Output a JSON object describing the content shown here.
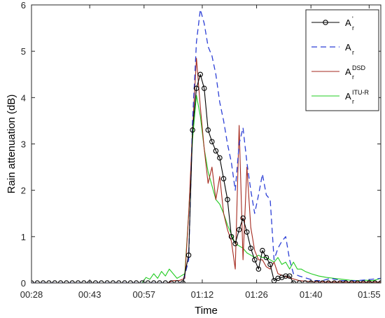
{
  "chart_data": {
    "type": "line",
    "xlabel": "Time",
    "ylabel": "Rain attenuation (dB)",
    "x_tick_labels": [
      "00:28",
      "00:43",
      "00:57",
      "01:12",
      "01:26",
      "01:40",
      "01:55"
    ],
    "x_tick_minutes": [
      28,
      43,
      57,
      72,
      86,
      100,
      115
    ],
    "xlim_minutes": [
      28,
      118
    ],
    "ylim": [
      0,
      6
    ],
    "y_ticks": [
      0,
      1,
      2,
      3,
      4,
      5,
      6
    ],
    "grid": false,
    "legend_position": "top-right",
    "series": [
      {
        "name": "A_r'",
        "legend_main": "A",
        "legend_sub": "r",
        "legend_sup": "'",
        "color": "#000000",
        "style": "solid",
        "marker": "circle",
        "points": [
          [
            28,
            0
          ],
          [
            29.5,
            0
          ],
          [
            31,
            0
          ],
          [
            32.5,
            0
          ],
          [
            34,
            0
          ],
          [
            35.5,
            0
          ],
          [
            37,
            0
          ],
          [
            38.5,
            0
          ],
          [
            40,
            0
          ],
          [
            41.5,
            0
          ],
          [
            43,
            0
          ],
          [
            44.5,
            0
          ],
          [
            46,
            0
          ],
          [
            47.5,
            0
          ],
          [
            49,
            0
          ],
          [
            50.5,
            0
          ],
          [
            52,
            0
          ],
          [
            53.5,
            0
          ],
          [
            55,
            0
          ],
          [
            56.5,
            0
          ],
          [
            58,
            0
          ],
          [
            59.5,
            0
          ],
          [
            61,
            0
          ],
          [
            62.5,
            0
          ],
          [
            64,
            0
          ],
          [
            65.5,
            0
          ],
          [
            67,
            0
          ],
          [
            68.5,
            0.6
          ],
          [
            69.5,
            3.3
          ],
          [
            70.5,
            4.2
          ],
          [
            71.5,
            4.5
          ],
          [
            72.5,
            4.2
          ],
          [
            73.5,
            3.3
          ],
          [
            74.5,
            3.05
          ],
          [
            75.5,
            2.85
          ],
          [
            76.5,
            2.7
          ],
          [
            77.5,
            2.25
          ],
          [
            78.5,
            1.8
          ],
          [
            79.5,
            1.0
          ],
          [
            80.5,
            0.85
          ],
          [
            81.5,
            1.15
          ],
          [
            82.5,
            1.4
          ],
          [
            83.5,
            1.1
          ],
          [
            84.5,
            0.75
          ],
          [
            85.5,
            0.5
          ],
          [
            86.5,
            0.3
          ],
          [
            87.5,
            0.7
          ],
          [
            88.5,
            0.55
          ],
          [
            89.5,
            0.4
          ],
          [
            90.5,
            0.05
          ],
          [
            91.5,
            0.1
          ],
          [
            92.5,
            0.12
          ],
          [
            93.5,
            0.15
          ],
          [
            94.5,
            0.15
          ],
          [
            95.5,
            0
          ],
          [
            97,
            0
          ],
          [
            98.5,
            0
          ],
          [
            100,
            0
          ],
          [
            101.5,
            0
          ],
          [
            103,
            0
          ],
          [
            104.5,
            0
          ],
          [
            106,
            0
          ],
          [
            107.5,
            0
          ],
          [
            109,
            0
          ],
          [
            110.5,
            0
          ],
          [
            112,
            0
          ],
          [
            113.5,
            0
          ],
          [
            115,
            0
          ],
          [
            116.5,
            0
          ],
          [
            118,
            0
          ]
        ]
      },
      {
        "name": "A_r",
        "legend_main": "A",
        "legend_sub": "r",
        "legend_sup": "",
        "color": "#2c3fd6",
        "style": "dashed",
        "marker": "none",
        "points": [
          [
            28,
            0
          ],
          [
            67,
            0
          ],
          [
            68.5,
            0.5
          ],
          [
            69.5,
            3.5
          ],
          [
            70.5,
            5.2
          ],
          [
            71.5,
            5.9
          ],
          [
            72.5,
            5.6
          ],
          [
            73.5,
            5.1
          ],
          [
            74.5,
            4.9
          ],
          [
            75.5,
            4.5
          ],
          [
            76.5,
            3.9
          ],
          [
            77.5,
            3.5
          ],
          [
            78.5,
            3.0
          ],
          [
            79.5,
            2.6
          ],
          [
            80.5,
            2.0
          ],
          [
            81.5,
            3.0
          ],
          [
            82.5,
            3.35
          ],
          [
            83.5,
            2.6
          ],
          [
            84.5,
            2.0
          ],
          [
            85.5,
            1.5
          ],
          [
            86.5,
            1.9
          ],
          [
            87.5,
            2.35
          ],
          [
            88.5,
            1.9
          ],
          [
            89.5,
            1.8
          ],
          [
            90.5,
            0.5
          ],
          [
            91.5,
            0.75
          ],
          [
            92.5,
            0.9
          ],
          [
            93.5,
            1.0
          ],
          [
            94.5,
            0.5
          ],
          [
            95.5,
            0.2
          ],
          [
            97,
            0.15
          ],
          [
            99,
            0.1
          ],
          [
            101,
            0.05
          ],
          [
            103,
            0.05
          ],
          [
            105,
            0.1
          ],
          [
            108,
            0.05
          ],
          [
            112,
            0.05
          ],
          [
            118,
            0.1
          ]
        ]
      },
      {
        "name": "A_r^DSD",
        "legend_main": "A",
        "legend_sub": "r",
        "legend_sup": "DSD",
        "color": "#a52a1f",
        "style": "solid",
        "marker": "none",
        "points": [
          [
            28,
            0
          ],
          [
            63,
            0
          ],
          [
            64.5,
            0.05
          ],
          [
            66,
            0.05
          ],
          [
            67.5,
            0.1
          ],
          [
            68.5,
            1.5
          ],
          [
            69.5,
            3.3
          ],
          [
            70.5,
            4.85
          ],
          [
            71.5,
            3.8
          ],
          [
            72.5,
            2.9
          ],
          [
            73.5,
            2.15
          ],
          [
            74.5,
            2.5
          ],
          [
            75.5,
            1.8
          ],
          [
            76.5,
            2.3
          ],
          [
            77.5,
            1.5
          ],
          [
            78.5,
            1.15
          ],
          [
            79.5,
            0.9
          ],
          [
            80.5,
            0.3
          ],
          [
            81.5,
            3.4
          ],
          [
            82.5,
            0.5
          ],
          [
            83.5,
            2.5
          ],
          [
            84.5,
            1.2
          ],
          [
            85.5,
            0.7
          ],
          [
            86.5,
            0.5
          ],
          [
            87.5,
            0.5
          ],
          [
            88.5,
            0.35
          ],
          [
            89.5,
            0.3
          ],
          [
            90.5,
            0.45
          ],
          [
            91.5,
            0.2
          ],
          [
            93,
            0.15
          ],
          [
            95,
            0.1
          ],
          [
            97,
            0.05
          ],
          [
            100,
            0.03
          ],
          [
            105,
            0.02
          ],
          [
            118,
            0.02
          ]
        ]
      },
      {
        "name": "A_r^ITU-R",
        "legend_main": "A",
        "legend_sub": "r",
        "legend_sup": "ITU-R",
        "color": "#22cc22",
        "style": "solid",
        "marker": "none",
        "points": [
          [
            28,
            0
          ],
          [
            56.5,
            0
          ],
          [
            57.5,
            0.12
          ],
          [
            58.5,
            0.08
          ],
          [
            59.5,
            0.2
          ],
          [
            60.5,
            0.1
          ],
          [
            61.5,
            0.25
          ],
          [
            62.5,
            0.15
          ],
          [
            63.5,
            0.3
          ],
          [
            64.5,
            0.2
          ],
          [
            65.5,
            0.1
          ],
          [
            66.5,
            0.15
          ],
          [
            67.5,
            0.2
          ],
          [
            68.5,
            1.5
          ],
          [
            69.5,
            3.1
          ],
          [
            70.5,
            4.05
          ],
          [
            71.5,
            3.6
          ],
          [
            72.5,
            2.9
          ],
          [
            73.5,
            2.4
          ],
          [
            74.5,
            2.1
          ],
          [
            75.5,
            1.8
          ],
          [
            76.5,
            1.7
          ],
          [
            77.5,
            1.5
          ],
          [
            78.5,
            1.25
          ],
          [
            79.5,
            1.05
          ],
          [
            80.5,
            0.85
          ],
          [
            81.5,
            0.8
          ],
          [
            82.5,
            0.75
          ],
          [
            83.5,
            0.65
          ],
          [
            84.5,
            0.6
          ],
          [
            85.5,
            0.55
          ],
          [
            86.5,
            0.6
          ],
          [
            87.5,
            0.55
          ],
          [
            88.5,
            0.55
          ],
          [
            89.5,
            0.5
          ],
          [
            90.5,
            0.45
          ],
          [
            91.5,
            0.55
          ],
          [
            92.5,
            0.4
          ],
          [
            93.5,
            0.45
          ],
          [
            94.5,
            0.3
          ],
          [
            95.5,
            0.45
          ],
          [
            96.5,
            0.3
          ],
          [
            97.5,
            0.3
          ],
          [
            98.5,
            0.25
          ],
          [
            100,
            0.2
          ],
          [
            102,
            0.15
          ],
          [
            104,
            0.12
          ],
          [
            106,
            0.1
          ],
          [
            108,
            0.08
          ],
          [
            110,
            0.06
          ],
          [
            112,
            0.05
          ],
          [
            114,
            0.06
          ],
          [
            116,
            0.05
          ],
          [
            118,
            0.1
          ]
        ]
      }
    ]
  }
}
